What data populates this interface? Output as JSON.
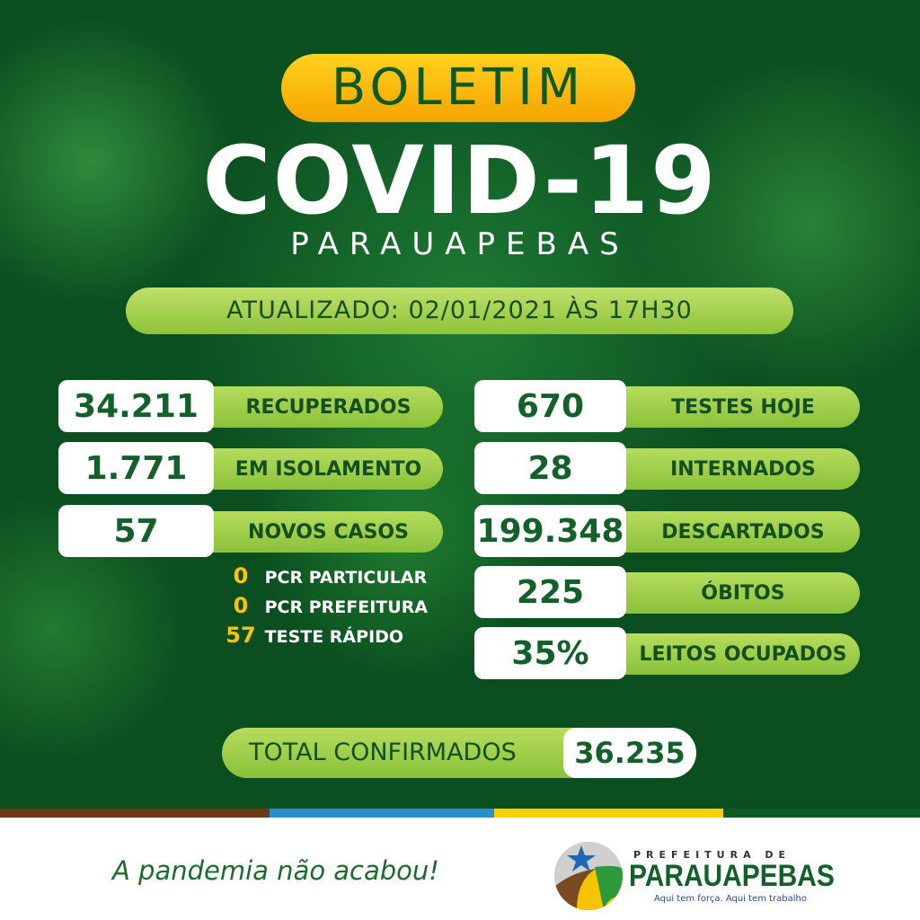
{
  "header": {
    "badge": "BOLETIM",
    "title": "COVID-19",
    "city": "PARAUAPEBAS",
    "updated": "ATUALIZADO: 02/01/2021 ÀS 17H30"
  },
  "left_stats": [
    {
      "value": "34.211",
      "label": "RECUPERADOS"
    },
    {
      "value": "1.771",
      "label": "EM ISOLAMENTO"
    },
    {
      "value": "57",
      "label": "NOVOS CASOS"
    }
  ],
  "new_cases_breakdown": [
    {
      "value": "0",
      "label": "PCR PARTICULAR"
    },
    {
      "value": "0",
      "label": "PCR PREFEITURA"
    },
    {
      "value": "57",
      "label": "TESTE RÁPIDO"
    }
  ],
  "right_stats": [
    {
      "value": "670",
      "label": "TESTES HOJE"
    },
    {
      "value": "28",
      "label": "INTERNADOS"
    },
    {
      "value": "199.348",
      "label": "DESCARTADOS"
    },
    {
      "value": "225",
      "label": "ÓBITOS"
    },
    {
      "value": "35%",
      "label": "LEITOS OCUPADOS"
    }
  ],
  "total": {
    "label": "TOTAL CONFIRMADOS",
    "value": "36.235"
  },
  "footer": {
    "slogan": "A pandemia não acabou!",
    "logo_top": "PREFEITURA DE",
    "logo_name": "PARAUAPEBAS",
    "logo_tagline": "Aqui tem força. Aqui tem trabalho"
  },
  "colors": {
    "background": "#0b4f20",
    "accent_green": "#9fd04a",
    "badge_yellow": "#ffc400",
    "text_green": "#13602b"
  }
}
